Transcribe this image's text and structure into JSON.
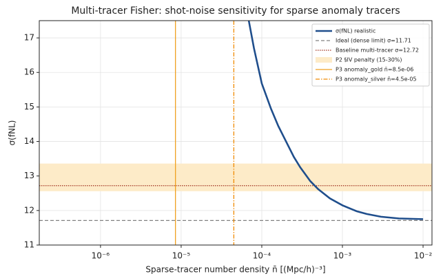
{
  "chart_data": {
    "type": "line",
    "title": "Multi-tracer Fisher: shot-noise sensitivity for sparse anomaly tracers",
    "xlabel": "Sparse-tracer number density n̄ [(Mpc/h)⁻³]",
    "ylabel": "σ(fNL)",
    "xscale": "log",
    "xlim": [
      1.74e-07,
      0.0129
    ],
    "ylim": [
      11,
      17.5
    ],
    "xticks": [
      {
        "value": 1e-06,
        "label": "10⁻⁶"
      },
      {
        "value": 1e-05,
        "label": "10⁻⁵"
      },
      {
        "value": 0.0001,
        "label": "10⁻⁴"
      },
      {
        "value": 0.001,
        "label": "10⁻³"
      },
      {
        "value": 0.01,
        "label": "10⁻²"
      }
    ],
    "yticks": [
      11,
      12,
      13,
      14,
      15,
      16,
      17
    ],
    "grid": true,
    "legend": "upper right",
    "series": [
      {
        "name": "σ(fNL) realistic",
        "color": "#1f4e8c",
        "x": [
          6.9e-05,
          8e-05,
          0.0001,
          0.00013,
          0.00016,
          0.0002,
          0.00025,
          0.0003,
          0.0004,
          0.0005,
          0.0007,
          0.001,
          0.0015,
          0.002,
          0.003,
          0.005,
          0.007,
          0.01
        ],
        "values": [
          17.5,
          16.7,
          15.68,
          14.95,
          14.45,
          14.0,
          13.55,
          13.25,
          12.85,
          12.62,
          12.35,
          12.15,
          11.98,
          11.9,
          11.82,
          11.77,
          11.76,
          11.75
        ]
      }
    ],
    "hlines": [
      {
        "name": "Ideal (dense limit) σ=11.71",
        "value": 11.71,
        "color": "#808080",
        "dash": "5,3"
      },
      {
        "name": "Baseline multi-tracer σ=12.72",
        "value": 12.72,
        "color": "#a0301c",
        "dash": "1.5,1.5"
      }
    ],
    "band": {
      "name": "P2 §IV penalty (15-30%)",
      "range": [
        12.56,
        13.36
      ],
      "color": "#fdebc8"
    },
    "vlines": [
      {
        "name": "P3 anomaly_gold n̄=8.5e-06",
        "value": 8.5e-06,
        "color": "#f0a020",
        "dash": ""
      },
      {
        "name": "P3 anomaly_silver n̄=4.5e-05",
        "value": 4.5e-05,
        "color": "#f08a00",
        "dash": "6,2,1.5,2"
      }
    ]
  }
}
